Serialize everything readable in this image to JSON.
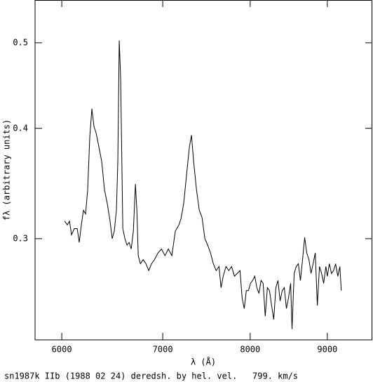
{
  "chart_data": {
    "type": "line",
    "xlabel": "λ (Å)",
    "ylabel": "fλ (arbitrary units)",
    "caption": "sn1987k IIb (1988 02 24) deredsh. by hel. vel.   799. km/s",
    "xscale": "log",
    "yscale": "log",
    "xlim": [
      5760,
      9640
    ],
    "ylim": [
      0.2304,
      0.559
    ],
    "xticks": [
      6000,
      7000,
      8000,
      9000
    ],
    "yticks": [
      0.3,
      0.4,
      0.5
    ],
    "color": "#000000",
    "x": [
      6026,
      6051,
      6071,
      6090,
      6116,
      6143,
      6162,
      6182,
      6202,
      6222,
      6242,
      6262,
      6282,
      6302,
      6323,
      6350,
      6377,
      6404,
      6431,
      6459,
      6480,
      6501,
      6522,
      6536,
      6550,
      6564,
      6586,
      6607,
      6628,
      6650,
      6671,
      6693,
      6714,
      6729,
      6743,
      6765,
      6794,
      6823,
      6852,
      6881,
      6912,
      6949,
      6986,
      7024,
      7060,
      7098,
      7136,
      7175,
      7198,
      7228,
      7259,
      7291,
      7314,
      7338,
      7370,
      7402,
      7433,
      7465,
      7497,
      7530,
      7562,
      7595,
      7628,
      7652,
      7677,
      7710,
      7743,
      7776,
      7810,
      7843,
      7877,
      7902,
      7928,
      7953,
      7979,
      8004,
      8030,
      8056,
      8082,
      8108,
      8134,
      8160,
      8186,
      8213,
      8239,
      8266,
      8293,
      8320,
      8347,
      8374,
      8401,
      8428,
      8455,
      8482,
      8510,
      8528,
      8556,
      8583,
      8611,
      8638,
      8666,
      8694,
      8722,
      8751,
      8779,
      8807,
      8836,
      8864,
      8893,
      8922,
      8950,
      8980,
      9000,
      9028,
      9057,
      9086,
      9115,
      9145,
      9174,
      9194
    ],
    "values": [
      0.314,
      0.311,
      0.314,
      0.303,
      0.308,
      0.308,
      0.297,
      0.311,
      0.323,
      0.32,
      0.341,
      0.391,
      0.421,
      0.402,
      0.395,
      0.381,
      0.367,
      0.341,
      0.329,
      0.314,
      0.3,
      0.306,
      0.323,
      0.367,
      0.503,
      0.457,
      0.308,
      0.3,
      0.295,
      0.297,
      0.292,
      0.306,
      0.346,
      0.323,
      0.287,
      0.281,
      0.284,
      0.281,
      0.276,
      0.281,
      0.284,
      0.289,
      0.292,
      0.287,
      0.292,
      0.287,
      0.306,
      0.311,
      0.316,
      0.329,
      0.354,
      0.381,
      0.393,
      0.367,
      0.341,
      0.323,
      0.317,
      0.3,
      0.295,
      0.289,
      0.281,
      0.276,
      0.279,
      0.264,
      0.272,
      0.279,
      0.276,
      0.279,
      0.272,
      0.274,
      0.276,
      0.257,
      0.25,
      0.262,
      0.262,
      0.267,
      0.269,
      0.272,
      0.264,
      0.26,
      0.269,
      0.267,
      0.245,
      0.264,
      0.262,
      0.252,
      0.243,
      0.264,
      0.269,
      0.255,
      0.262,
      0.264,
      0.25,
      0.257,
      0.267,
      0.237,
      0.274,
      0.279,
      0.281,
      0.269,
      0.284,
      0.301,
      0.289,
      0.284,
      0.274,
      0.281,
      0.289,
      0.252,
      0.279,
      0.274,
      0.267,
      0.279,
      0.272,
      0.281,
      0.274,
      0.276,
      0.281,
      0.272,
      0.279,
      0.262
    ]
  }
}
